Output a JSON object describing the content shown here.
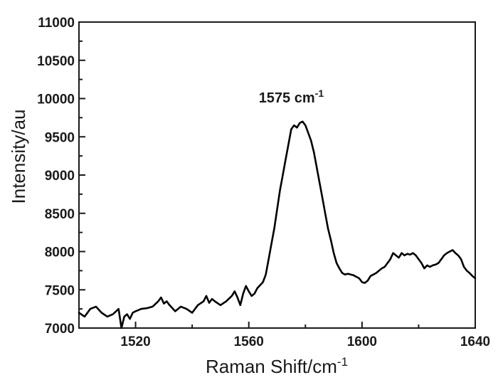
{
  "chart_data": {
    "type": "line",
    "title": "",
    "xlabel": "Raman Shift/cm",
    "xlabel_sup": "-1",
    "ylabel": "Intensity/au",
    "xlim": [
      1500,
      1640
    ],
    "ylim": [
      7000,
      11000
    ],
    "x_ticks": [
      1520,
      1560,
      1600,
      1640
    ],
    "y_ticks": [
      7000,
      7500,
      8000,
      8500,
      9000,
      9500,
      10000,
      10500,
      11000
    ],
    "grid": false,
    "legend": "none",
    "line_color": "#000000",
    "annotations": [
      {
        "text": "1575 cm",
        "sup": "-1",
        "x": 1575,
        "y": 9950
      }
    ],
    "series": [
      {
        "x": [
          1500,
          1502,
          1504,
          1506,
          1508,
          1510,
          1512,
          1514,
          1515,
          1516,
          1517,
          1518,
          1519,
          1520,
          1522,
          1524,
          1526,
          1528,
          1529,
          1530,
          1531,
          1532,
          1534,
          1536,
          1538,
          1540,
          1542,
          1544,
          1545,
          1546,
          1547,
          1548,
          1550,
          1552,
          1554,
          1555,
          1556,
          1557,
          1558,
          1559,
          1560,
          1561,
          1562,
          1563,
          1564,
          1565,
          1566,
          1567,
          1568,
          1569,
          1570,
          1571,
          1572,
          1573,
          1574,
          1575,
          1576,
          1577,
          1578,
          1579,
          1580,
          1581,
          1582,
          1583,
          1584,
          1585,
          1586,
          1587,
          1588,
          1589,
          1590,
          1591,
          1592,
          1593,
          1594,
          1595,
          1596,
          1597,
          1598,
          1599,
          1600,
          1601,
          1602,
          1603,
          1604,
          1605,
          1606,
          1607,
          1608,
          1609,
          1610,
          1611,
          1612,
          1613,
          1614,
          1615,
          1616,
          1617,
          1618,
          1619,
          1620,
          1621,
          1622,
          1623,
          1624,
          1625,
          1626,
          1627,
          1628,
          1629,
          1630,
          1631,
          1632,
          1633,
          1634,
          1635,
          1636,
          1637,
          1638,
          1639,
          1640
        ],
        "y": [
          7200,
          7150,
          7250,
          7280,
          7200,
          7150,
          7180,
          7250,
          7000,
          7150,
          7180,
          7120,
          7200,
          7220,
          7250,
          7260,
          7280,
          7350,
          7400,
          7320,
          7350,
          7300,
          7220,
          7280,
          7250,
          7200,
          7300,
          7350,
          7420,
          7330,
          7380,
          7350,
          7300,
          7350,
          7420,
          7480,
          7400,
          7300,
          7450,
          7550,
          7480,
          7420,
          7450,
          7520,
          7560,
          7600,
          7700,
          7900,
          8100,
          8300,
          8550,
          8800,
          9000,
          9200,
          9400,
          9600,
          9650,
          9620,
          9680,
          9700,
          9650,
          9550,
          9450,
          9300,
          9100,
          8900,
          8700,
          8500,
          8300,
          8150,
          7980,
          7850,
          7780,
          7720,
          7700,
          7710,
          7700,
          7690,
          7670,
          7650,
          7600,
          7590,
          7620,
          7680,
          7700,
          7720,
          7750,
          7780,
          7800,
          7850,
          7900,
          7980,
          7950,
          7920,
          7980,
          7950,
          7970,
          7960,
          7980,
          7950,
          7900,
          7850,
          7780,
          7820,
          7800,
          7820,
          7830,
          7850,
          7900,
          7950,
          7980,
          8000,
          8020,
          7980,
          7950,
          7900,
          7800,
          7750,
          7720,
          7680,
          7650
        ]
      }
    ]
  }
}
